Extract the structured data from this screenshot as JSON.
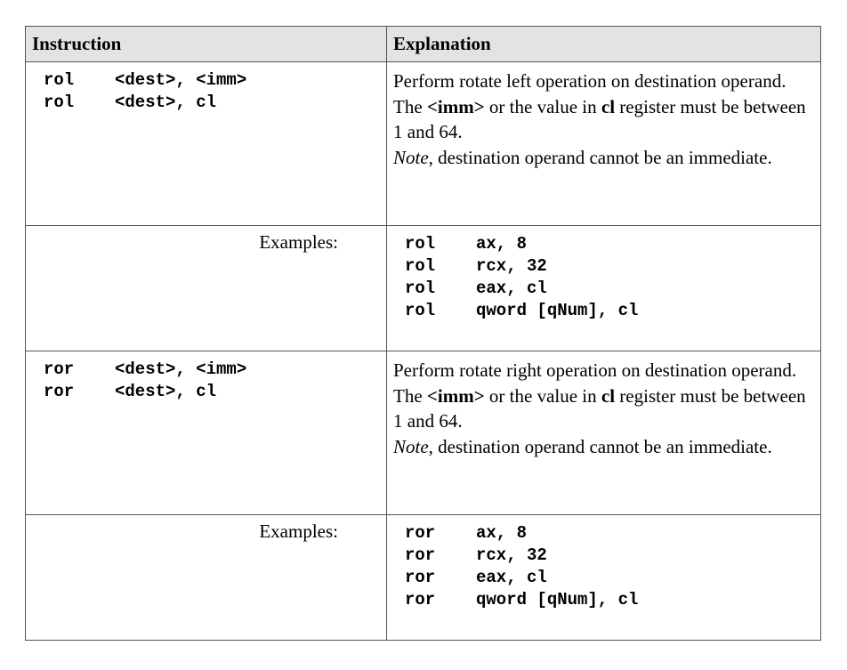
{
  "table": {
    "headers": {
      "instruction": "Instruction",
      "explanation": "Explanation"
    },
    "examples_label": "Examples:",
    "rows": [
      {
        "instruction_lines": [
          {
            "mnemonic": "rol",
            "operands": "<dest>, <imm>"
          },
          {
            "mnemonic": "rol",
            "operands": "<dest>, cl"
          }
        ],
        "explanation": {
          "line1": "Perform rotate left operation on destination operand.",
          "p2_pre": "The ",
          "p2_bold1": "<imm>",
          "p2_mid": " or the value in ",
          "p2_bold2": "cl",
          "p2_post": " register must be between 1 and 64.",
          "note_italic": "Note",
          "note_rest": ", destination operand cannot be an immediate."
        },
        "examples": [
          {
            "mnemonic": "rol",
            "operands": "ax, 8"
          },
          {
            "mnemonic": "rol",
            "operands": "rcx, 32"
          },
          {
            "mnemonic": "rol",
            "operands": "eax, cl"
          },
          {
            "mnemonic": "rol",
            "operands": "qword [qNum], cl"
          }
        ]
      },
      {
        "instruction_lines": [
          {
            "mnemonic": "ror",
            "operands": "<dest>, <imm>"
          },
          {
            "mnemonic": "ror",
            "operands": "<dest>, cl"
          }
        ],
        "explanation": {
          "line1": "Perform rotate right operation on destination operand.",
          "p2_pre": "The ",
          "p2_bold1": "<imm>",
          "p2_mid": " or the value in ",
          "p2_bold2": "cl",
          "p2_post": " register must be between 1 and 64.",
          "note_italic": "Note",
          "note_rest": ", destination operand cannot be an immediate."
        },
        "examples": [
          {
            "mnemonic": "ror",
            "operands": "ax, 8"
          },
          {
            "mnemonic": "ror",
            "operands": "rcx, 32"
          },
          {
            "mnemonic": "ror",
            "operands": "eax, cl"
          },
          {
            "mnemonic": "ror",
            "operands": "qword [qNum], cl"
          }
        ]
      }
    ]
  }
}
